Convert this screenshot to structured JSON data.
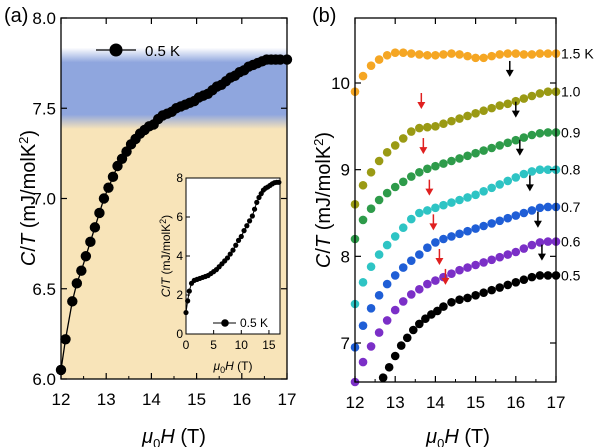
{
  "chart_data": [
    {
      "panel_label": "(a)",
      "type": "line",
      "xlabel": "μ0H (T)",
      "ylabel": "C/T (mJ/molK²)",
      "xlim": [
        12,
        17
      ],
      "ylim": [
        6.0,
        8.0
      ],
      "xticks": [
        "12",
        "13",
        "14",
        "15",
        "16",
        "17"
      ],
      "yticks": [
        "6.0",
        "6.5",
        "7.0",
        "7.5",
        "8.0"
      ],
      "legend": {
        "label": "0.5 K",
        "placement": "top-left"
      },
      "bands": [
        {
          "name": "upper",
          "ymin": 7.44,
          "ymax": 7.78,
          "color": "#8fa6de"
        },
        {
          "name": "lower",
          "ymin": 6.0,
          "ymax": 7.44,
          "color": "#f8e4b9"
        }
      ],
      "series": [
        {
          "color": "#000000",
          "x": [
            12.0,
            12.1,
            12.25,
            12.35,
            12.45,
            12.55,
            12.65,
            12.75,
            12.85,
            12.95,
            13.05,
            13.15,
            13.25,
            13.35,
            13.45,
            13.55,
            13.65,
            13.75,
            13.85,
            13.95,
            14.05,
            14.15,
            14.25,
            14.35,
            14.45,
            14.55,
            14.65,
            14.75,
            14.85,
            14.95,
            15.05,
            15.15,
            15.25,
            15.35,
            15.45,
            15.55,
            15.65,
            15.75,
            15.85,
            15.95,
            16.05,
            16.15,
            16.25,
            16.35,
            16.45,
            16.55,
            16.65,
            16.75,
            16.85,
            17.0
          ],
          "values": [
            6.05,
            6.22,
            6.43,
            6.53,
            6.6,
            6.68,
            6.76,
            6.84,
            6.92,
            7.0,
            7.06,
            7.12,
            7.18,
            7.22,
            7.26,
            7.3,
            7.33,
            7.36,
            7.38,
            7.4,
            7.41,
            7.44,
            7.46,
            7.47,
            7.48,
            7.5,
            7.51,
            7.52,
            7.53,
            7.54,
            7.56,
            7.57,
            7.58,
            7.6,
            7.62,
            7.63,
            7.65,
            7.67,
            7.68,
            7.7,
            7.71,
            7.73,
            7.74,
            7.75,
            7.76,
            7.77,
            7.77,
            7.77,
            7.77,
            7.77
          ]
        }
      ],
      "inset": {
        "type": "line",
        "xlabel": "μ0H (T)",
        "ylabel": "C/T (mJ/molK²)",
        "xlim": [
          0,
          17
        ],
        "ylim": [
          0,
          8
        ],
        "xticks": [
          "0",
          "5",
          "10",
          "15"
        ],
        "yticks": [
          "0",
          "2",
          "4",
          "6",
          "8"
        ],
        "legend": {
          "label": "0.5 K",
          "placement": "bottom-right"
        },
        "series": [
          {
            "color": "#000000",
            "x": [
              0.0,
              0.3,
              0.6,
              1.0,
              1.5,
              2.0,
              2.5,
              3.0,
              3.5,
              4.0,
              4.5,
              5.0,
              5.5,
              6.0,
              6.5,
              7.0,
              7.5,
              8.0,
              8.5,
              9.0,
              9.5,
              10.0,
              10.5,
              11.0,
              11.5,
              12.0,
              12.4,
              12.8,
              13.2,
              13.6,
              14.0,
              14.4,
              14.8,
              15.2,
              15.6,
              16.0,
              16.4,
              16.8
            ],
            "values": [
              1.1,
              1.7,
              2.2,
              2.6,
              2.75,
              2.8,
              2.85,
              2.9,
              2.95,
              3.0,
              3.1,
              3.2,
              3.3,
              3.45,
              3.6,
              3.75,
              3.9,
              4.1,
              4.3,
              4.55,
              4.8,
              5.0,
              5.3,
              5.55,
              5.8,
              6.05,
              6.4,
              6.75,
              7.0,
              7.2,
              7.38,
              7.48,
              7.54,
              7.62,
              7.7,
              7.76,
              7.78,
              7.78
            ]
          }
        ]
      }
    },
    {
      "panel_label": "(b)",
      "type": "scatter",
      "xlabel": "μ0H (T)",
      "ylabel": "C/T (mJ/molK²)",
      "xlim": [
        12,
        17
      ],
      "ylim": [
        6.55,
        10.75
      ],
      "xticks": [
        "12",
        "13",
        "14",
        "15",
        "16",
        "17"
      ],
      "yticks": [
        "7",
        "8",
        "9",
        "10"
      ],
      "series": [
        {
          "name": "1.5 K",
          "color": "#f5a623",
          "x": [
            12.0,
            12.2,
            12.4,
            12.6,
            12.8,
            13.0,
            13.2,
            13.4,
            13.6,
            13.8,
            14.0,
            14.2,
            14.4,
            14.6,
            14.8,
            15.0,
            15.2,
            15.4,
            15.6,
            15.8,
            16.0,
            16.2,
            16.4,
            16.6,
            16.8,
            17.0
          ],
          "values": [
            9.9,
            10.08,
            10.2,
            10.27,
            10.32,
            10.35,
            10.35,
            10.34,
            10.33,
            10.32,
            10.32,
            10.33,
            10.34,
            10.33,
            10.31,
            10.29,
            10.29,
            10.31,
            10.33,
            10.34,
            10.34,
            10.33,
            10.33,
            10.34,
            10.34,
            10.34
          ]
        },
        {
          "name": "1.0",
          "color": "#9a9a14",
          "x": [
            12.0,
            12.2,
            12.4,
            12.6,
            12.8,
            13.0,
            13.2,
            13.4,
            13.6,
            13.8,
            14.0,
            14.2,
            14.4,
            14.6,
            14.8,
            15.0,
            15.2,
            15.4,
            15.6,
            15.8,
            16.0,
            16.2,
            16.4,
            16.6,
            16.8,
            17.0
          ],
          "values": [
            8.6,
            8.82,
            8.97,
            9.1,
            9.2,
            9.28,
            9.36,
            9.44,
            9.48,
            9.49,
            9.5,
            9.53,
            9.56,
            9.59,
            9.62,
            9.65,
            9.68,
            9.71,
            9.74,
            9.76,
            9.79,
            9.82,
            9.85,
            9.88,
            9.9,
            9.9
          ]
        },
        {
          "name": "0.9",
          "color": "#2e9b4a",
          "x": [
            12.0,
            12.2,
            12.4,
            12.6,
            12.8,
            13.0,
            13.2,
            13.4,
            13.6,
            13.8,
            14.0,
            14.2,
            14.4,
            14.6,
            14.8,
            15.0,
            15.2,
            15.4,
            15.6,
            15.8,
            16.0,
            16.2,
            16.4,
            16.6,
            16.8,
            17.0
          ],
          "values": [
            8.2,
            8.42,
            8.55,
            8.65,
            8.73,
            8.8,
            8.86,
            8.92,
            8.97,
            9.01,
            9.04,
            9.07,
            9.1,
            9.13,
            9.16,
            9.19,
            9.22,
            9.25,
            9.28,
            9.31,
            9.34,
            9.37,
            9.4,
            9.42,
            9.43,
            9.43
          ]
        },
        {
          "name": "0.8",
          "color": "#2ec4c4",
          "x": [
            12.0,
            12.2,
            12.4,
            12.6,
            12.8,
            13.0,
            13.2,
            13.4,
            13.6,
            13.8,
            14.0,
            14.2,
            14.4,
            14.6,
            14.8,
            15.0,
            15.2,
            15.4,
            15.6,
            15.8,
            16.0,
            16.2,
            16.4,
            16.6,
            16.8,
            17.0
          ],
          "values": [
            7.45,
            7.7,
            7.88,
            8.02,
            8.13,
            8.23,
            8.33,
            8.43,
            8.5,
            8.53,
            8.56,
            8.59,
            8.62,
            8.65,
            8.68,
            8.71,
            8.75,
            8.79,
            8.83,
            8.87,
            8.91,
            8.95,
            8.98,
            9.0,
            9.0,
            9.0
          ]
        },
        {
          "name": "0.7",
          "color": "#1f5ed6",
          "x": [
            12.0,
            12.2,
            12.4,
            12.6,
            12.8,
            13.0,
            13.2,
            13.4,
            13.6,
            13.8,
            14.0,
            14.2,
            14.4,
            14.6,
            14.8,
            15.0,
            15.2,
            15.4,
            15.6,
            15.8,
            16.0,
            16.2,
            16.4,
            16.6,
            16.8,
            17.0
          ],
          "values": [
            6.95,
            7.2,
            7.4,
            7.55,
            7.68,
            7.78,
            7.87,
            7.95,
            8.02,
            8.1,
            8.16,
            8.2,
            8.23,
            8.26,
            8.29,
            8.32,
            8.35,
            8.38,
            8.41,
            8.44,
            8.47,
            8.5,
            8.53,
            8.56,
            8.57,
            8.57
          ]
        },
        {
          "name": "0.6",
          "color": "#7b2fc7",
          "x": [
            12.0,
            12.2,
            12.4,
            12.6,
            12.8,
            13.0,
            13.2,
            13.4,
            13.6,
            13.8,
            14.0,
            14.2,
            14.4,
            14.6,
            14.8,
            15.0,
            15.2,
            15.4,
            15.6,
            15.8,
            16.0,
            16.2,
            16.4,
            16.6,
            16.8,
            17.0
          ],
          "values": [
            6.55,
            6.78,
            6.96,
            7.12,
            7.26,
            7.38,
            7.48,
            7.56,
            7.62,
            7.68,
            7.72,
            7.76,
            7.8,
            7.84,
            7.87,
            7.9,
            7.93,
            7.96,
            7.99,
            8.02,
            8.05,
            8.09,
            8.13,
            8.16,
            8.17,
            8.17
          ]
        },
        {
          "name": "0.5",
          "color": "#000000",
          "x": [
            12.7,
            12.85,
            13.0,
            13.15,
            13.3,
            13.45,
            13.6,
            13.75,
            13.9,
            14.05,
            14.2,
            14.4,
            14.6,
            14.8,
            15.0,
            15.2,
            15.4,
            15.6,
            15.8,
            16.0,
            16.2,
            16.4,
            16.6,
            16.8,
            17.0
          ],
          "values": [
            6.6,
            6.72,
            6.85,
            6.97,
            7.06,
            7.15,
            7.22,
            7.28,
            7.33,
            7.37,
            7.42,
            7.47,
            7.5,
            7.52,
            7.55,
            7.58,
            7.61,
            7.64,
            7.67,
            7.7,
            7.73,
            7.76,
            7.78,
            7.78,
            7.78
          ]
        }
      ],
      "annotations": [
        {
          "type": "arrow",
          "color": "#e02020",
          "x": 13.65,
          "y": 9.7
        },
        {
          "type": "arrow",
          "color": "#e02020",
          "x": 13.7,
          "y": 9.18
        },
        {
          "type": "arrow",
          "color": "#e02020",
          "x": 13.85,
          "y": 8.7
        },
        {
          "type": "arrow",
          "color": "#e02020",
          "x": 13.95,
          "y": 8.3
        },
        {
          "type": "arrow",
          "color": "#e02020",
          "x": 14.1,
          "y": 7.9
        },
        {
          "type": "arrow",
          "color": "#e02020",
          "x": 14.25,
          "y": 7.67
        },
        {
          "type": "arrow",
          "color": "#000000",
          "x": 15.85,
          "y": 10.07
        },
        {
          "type": "arrow",
          "color": "#000000",
          "x": 16.0,
          "y": 9.6
        },
        {
          "type": "arrow",
          "color": "#000000",
          "x": 16.1,
          "y": 9.16
        },
        {
          "type": "arrow",
          "color": "#000000",
          "x": 16.35,
          "y": 8.75
        },
        {
          "type": "arrow",
          "color": "#000000",
          "x": 16.55,
          "y": 8.33
        },
        {
          "type": "arrow",
          "color": "#000000",
          "x": 16.65,
          "y": 7.95
        }
      ]
    }
  ]
}
